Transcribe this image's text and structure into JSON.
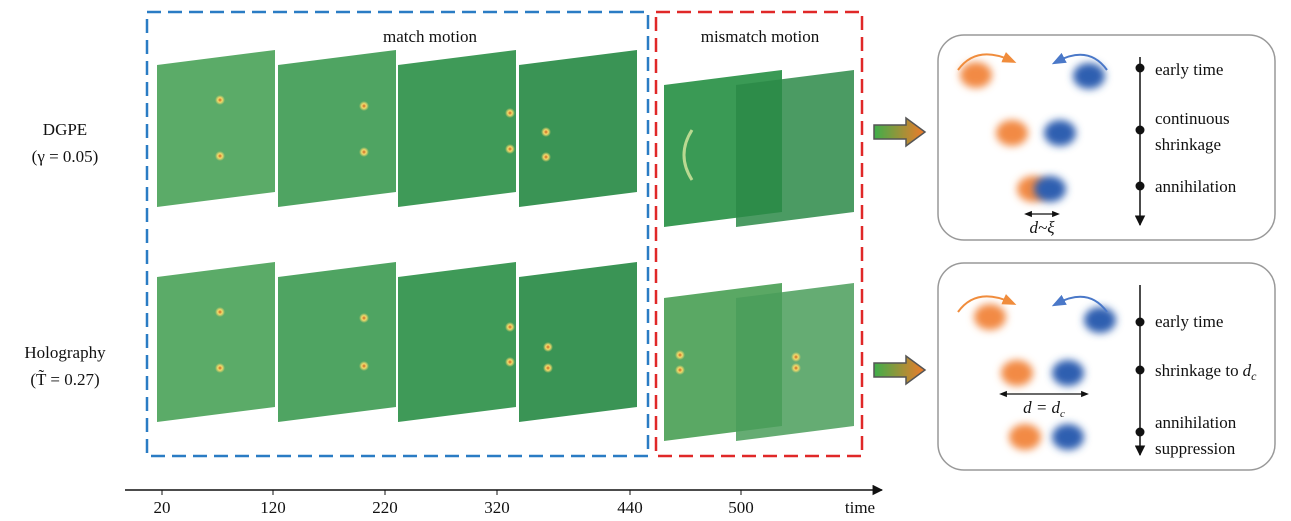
{
  "panels": {
    "match_title": "match motion",
    "mismatch_title": "mismatch motion"
  },
  "rows": [
    {
      "label": "DGPE",
      "param": "(γ = 0.05)"
    },
    {
      "label": "Holography",
      "param": "(T̃ = 0.27)"
    }
  ],
  "timeline": {
    "ticks": [
      20,
      120,
      220,
      320,
      440,
      500
    ],
    "label": "time"
  },
  "summary": [
    {
      "stages": [
        {
          "lines": [
            "early time"
          ]
        },
        {
          "lines": [
            "continuous",
            "shrinkage"
          ]
        },
        {
          "lines": [
            "annihilation"
          ]
        }
      ],
      "distance": {
        "text": "d~ξ"
      }
    },
    {
      "stages": [
        {
          "lines": [
            "early time"
          ]
        },
        {
          "lines": [
            "shrinkage to"
          ],
          "var": "d",
          "sub": "c"
        },
        {
          "lines": [
            "annihilation",
            "suppression"
          ]
        }
      ],
      "distance": {
        "text": "d = d",
        "sub": "c"
      }
    }
  ]
}
